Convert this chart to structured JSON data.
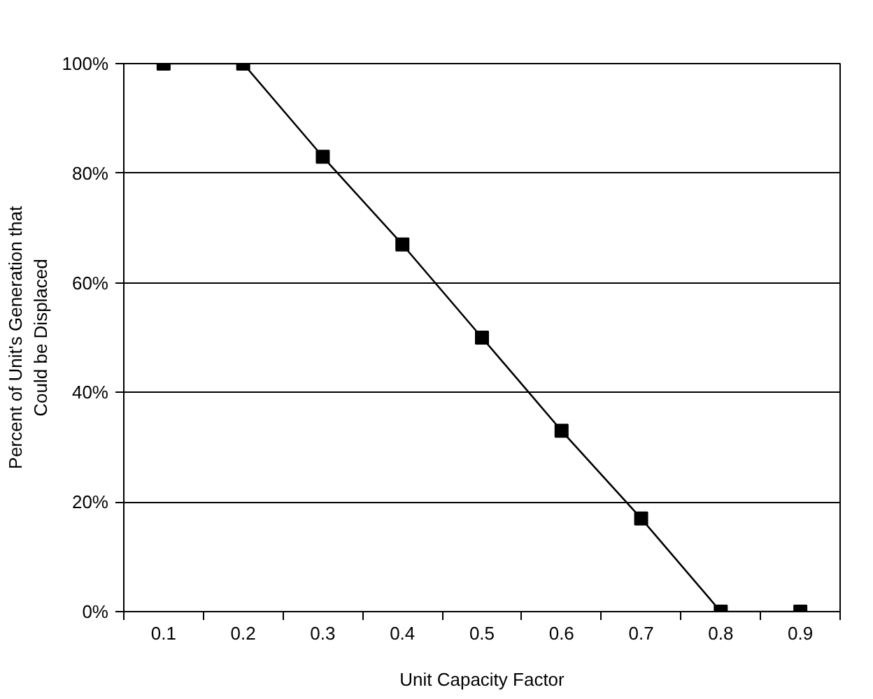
{
  "chart_data": {
    "type": "line",
    "xlabel": "Unit Capacity Factor",
    "ylabel": "Percent of Unit's Generation that\nCould be Displaced",
    "categories": [
      "0.1",
      "0.2",
      "0.3",
      "0.4",
      "0.5",
      "0.6",
      "0.7",
      "0.8",
      "0.9"
    ],
    "series": [
      {
        "color": "#000000",
        "values": [
          100,
          100,
          83,
          67,
          50,
          33,
          17,
          0,
          0
        ]
      }
    ],
    "ylim": [
      0,
      100
    ],
    "yticks": [
      {
        "value": 0,
        "label": "0%"
      },
      {
        "value": 20,
        "label": "20%"
      },
      {
        "value": 40,
        "label": "40%"
      },
      {
        "value": 60,
        "label": "60%"
      },
      {
        "value": 80,
        "label": "80%"
      },
      {
        "value": 100,
        "label": "100%"
      }
    ],
    "grid": "y",
    "marker": "square",
    "line_style": "solid"
  }
}
